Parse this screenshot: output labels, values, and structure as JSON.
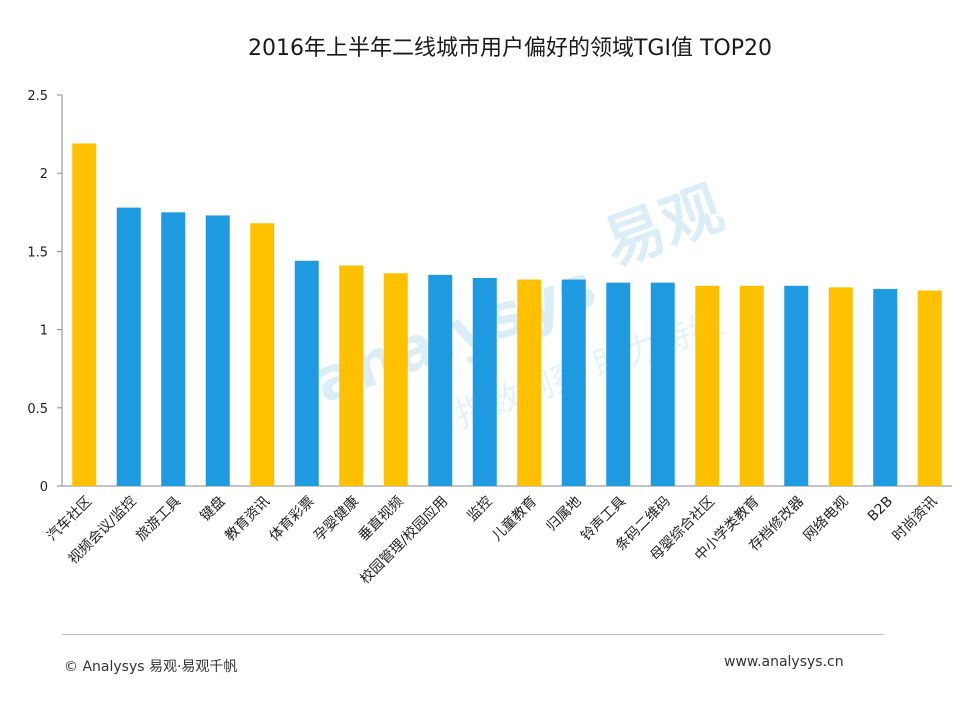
{
  "chart_data": {
    "type": "bar",
    "title": "2016年上半年二线城市用户偏好的领域TGI值 TOP20",
    "categories": [
      "汽车社区",
      "视频会议/监控",
      "旅游工具",
      "键盘",
      "教育资讯",
      "体育彩票",
      "孕婴健康",
      "垂直视频",
      "校园管理/校园应用",
      "监控",
      "儿童教育",
      "归属地",
      "铃声工具",
      "条码二维码",
      "母婴综合社区",
      "中小学类教育",
      "存档修改器",
      "网络电视",
      "B2B",
      "时尚资讯"
    ],
    "values": [
      2.19,
      1.78,
      1.75,
      1.73,
      1.68,
      1.44,
      1.41,
      1.36,
      1.35,
      1.33,
      1.32,
      1.32,
      1.3,
      1.3,
      1.28,
      1.28,
      1.28,
      1.27,
      1.26,
      1.25
    ],
    "bar_colors": [
      "#FFC000",
      "#1E9BE0",
      "#1E9BE0",
      "#1E9BE0",
      "#FFC000",
      "#1E9BE0",
      "#FFC000",
      "#FFC000",
      "#1E9BE0",
      "#1E9BE0",
      "#FFC000",
      "#1E9BE0",
      "#1E9BE0",
      "#1E9BE0",
      "#FFC000",
      "#FFC000",
      "#1E9BE0",
      "#FFC000",
      "#1E9BE0",
      "#FFC000"
    ],
    "yticks": [
      "0",
      "0.5",
      "1",
      "1.5",
      "2",
      "2.5"
    ],
    "ylim": [
      0,
      2.5
    ],
    "grid": false,
    "legend": "none"
  },
  "footer": {
    "left": "© Analysys 易观·易观千帆",
    "right": "www.analysys.cn"
  },
  "watermark": {
    "brand": "易观",
    "latin": "analysys",
    "slogan": "指数洞察 助力持续"
  }
}
